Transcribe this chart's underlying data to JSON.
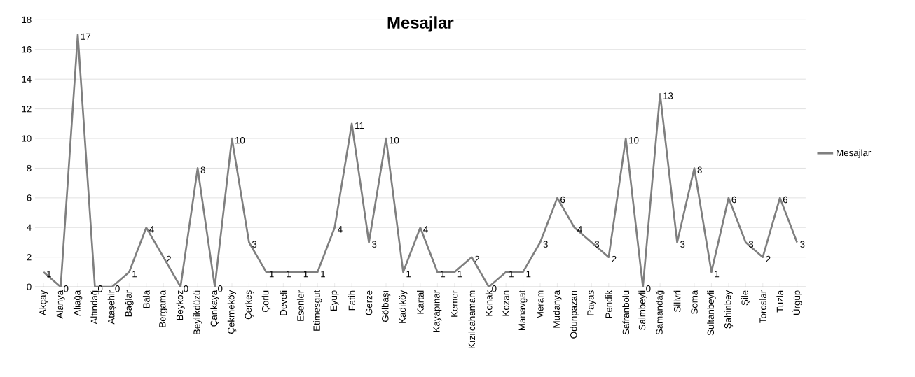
{
  "chart_data": {
    "type": "line",
    "title": "Mesajlar",
    "categories": [
      "Akçay",
      "Alanya",
      "Aliağa",
      "Altındağ",
      "Ataşehir",
      "Bağlar",
      "Bala",
      "Bergama",
      "Beykoz",
      "Beylikdüzü",
      "Çankaya",
      "Çekmeköy",
      "Çerkeş",
      "Çorlu",
      "Develi",
      "Esenler",
      "Etimesgut",
      "Eyüp",
      "Fatih",
      "Gerze",
      "Gölbaşı",
      "Kadıköy",
      "Kartal",
      "Kayapınar",
      "Kemer",
      "Kızılcahamam",
      "Konak",
      "Kozan",
      "Manavgat",
      "Meram",
      "Mudanya",
      "Odunpazarı",
      "Payas",
      "Pendik",
      "Safranbolu",
      "Saimbeyli",
      "Samandağ",
      "Silivri",
      "Soma",
      "Sultanbeyli",
      "Şahinbey",
      "Şile",
      "Toroslar",
      "Tuzla",
      "Ürgüp"
    ],
    "series": [
      {
        "name": "Mesajlar",
        "color": "#7f7f7f",
        "values": [
          1,
          0,
          17,
          0,
          0,
          1,
          4,
          2,
          0,
          8,
          0,
          10,
          3,
          1,
          1,
          1,
          1,
          4,
          11,
          3,
          10,
          1,
          4,
          1,
          1,
          2,
          0,
          1,
          1,
          3,
          6,
          4,
          3,
          2,
          10,
          0,
          13,
          3,
          8,
          1,
          6,
          3,
          2,
          6,
          3
        ]
      }
    ],
    "ylim": [
      0,
      18
    ],
    "yticks": [
      0,
      2,
      4,
      6,
      8,
      10,
      12,
      14,
      16,
      18
    ],
    "grid": "y",
    "legend": "right",
    "data_labels": true,
    "marker": "none",
    "line_style": "solid"
  }
}
